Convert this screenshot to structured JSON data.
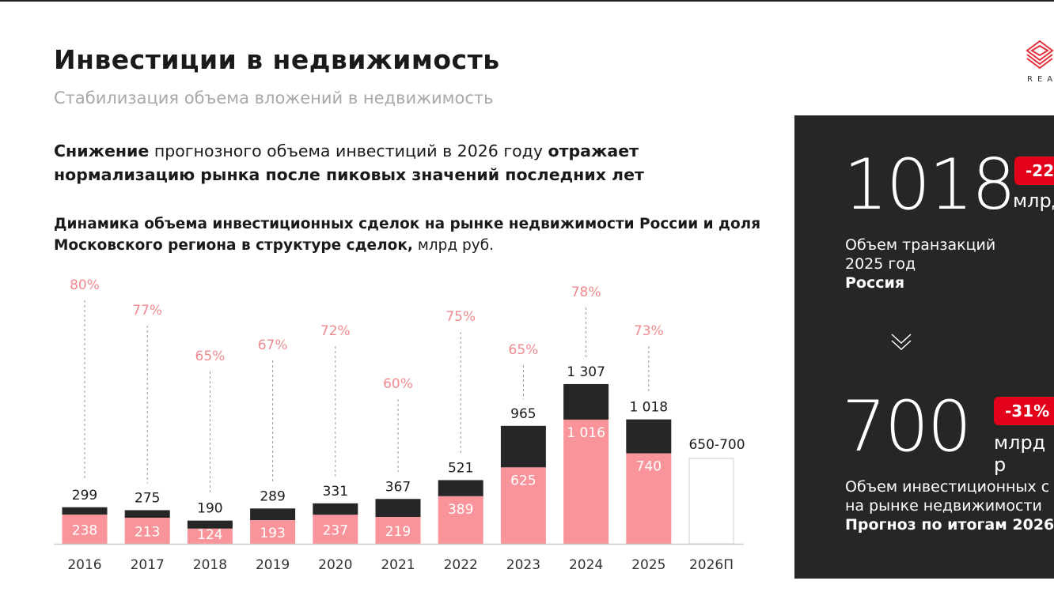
{
  "header": {
    "title": "Инвестиции в недвижимость",
    "subtitle": "Стабилизация объема вложений в недвижимость",
    "logo_text": "REA"
  },
  "lead": {
    "part1": "Снижение",
    "part2": " прогнозного объема инвестиций в 2026 году ",
    "part3": "отражает нормализацию рынка после пиковых значений последних лет"
  },
  "chart_heading": {
    "bold": "Динамика объема инвестиционных сделок на рынке недвижимости России и доля Московского региона в структуре сделок,",
    "unit": " млрд руб."
  },
  "chart_data": {
    "type": "bar",
    "stacked": true,
    "categories": [
      "2016",
      "2017",
      "2018",
      "2019",
      "2020",
      "2021",
      "2022",
      "2023",
      "2024",
      "2025",
      "2026П"
    ],
    "totals": [
      299,
      275,
      190,
      289,
      331,
      367,
      521,
      965,
      1307,
      1018,
      null
    ],
    "total_labels": [
      "299",
      "275",
      "190",
      "289",
      "331",
      "367",
      "521",
      "965",
      "1 307",
      "1 018",
      "650-700"
    ],
    "moscow": [
      238,
      213,
      124,
      193,
      237,
      219,
      389,
      625,
      1016,
      740,
      null
    ],
    "moscow_labels": [
      "238",
      "213",
      "124",
      "193",
      "237",
      "219",
      "389",
      "625",
      "1 016",
      "740",
      ""
    ],
    "moscow_share_labels": [
      "80%",
      "77%",
      "65%",
      "67%",
      "72%",
      "60%",
      "75%",
      "65%",
      "78%",
      "73%",
      ""
    ],
    "forecast_range": [
      650,
      700
    ],
    "colors": {
      "moscow": "#f9959a",
      "rest": "#262626",
      "share": "#f08a8f",
      "forecast_outline": "#cccccc"
    }
  },
  "panel": {
    "value1": "1018",
    "badge1": "-22",
    "unit1": "млрд",
    "desc1_line1": "Объем транзакций",
    "desc1_line2": "2025 год",
    "desc1_line3": "Россия",
    "arrow_icon": "double-chevron-down",
    "value2": "700",
    "badge2": "-31%",
    "unit2": "млрд р",
    "desc2_line1": "Объем инвестиционных с",
    "desc2_line2": "на рынке недвижимости",
    "desc2_line3": "Прогноз по итогам 2026"
  }
}
